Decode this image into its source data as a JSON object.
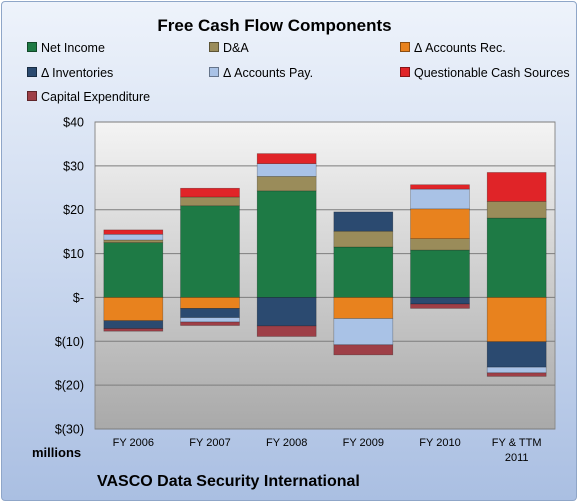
{
  "chart_data": {
    "type": "bar",
    "stacked": true,
    "title": "Free Cash Flow Components",
    "ylabel_units": "millions",
    "footer": "VASCO Data Security International",
    "categories": [
      "FY 2006",
      "FY 2007",
      "FY 2008",
      "FY 2009",
      "FY 2010",
      "FY & TTM 2011"
    ],
    "ylim": [
      -30,
      40
    ],
    "yticks": [
      {
        "value": 40,
        "label": "$40"
      },
      {
        "value": 30,
        "label": "$30"
      },
      {
        "value": 20,
        "label": "$20"
      },
      {
        "value": 10,
        "label": "$10"
      },
      {
        "value": 0,
        "label": "$-"
      },
      {
        "value": -10,
        "label": "$(10)"
      },
      {
        "value": -20,
        "label": "$(20)"
      },
      {
        "value": -30,
        "label": "$(30)"
      }
    ],
    "grid": true,
    "legend_position": "top",
    "series": [
      {
        "name": "Net Income",
        "color": "#1e7a45",
        "values": [
          12.5,
          20.9,
          24.3,
          11.5,
          10.8,
          18.1
        ]
      },
      {
        "name": "D&A",
        "color": "#9a8c5a",
        "values": [
          0.6,
          2.0,
          3.3,
          3.6,
          2.6,
          3.8
        ]
      },
      {
        "name": "Δ Accounts Rec.",
        "color": "#e8821e",
        "values": [
          -5.3,
          -2.5,
          0.0,
          -4.8,
          6.8,
          -10.1
        ]
      },
      {
        "name": "Δ Inventories",
        "color": "#2b4a70",
        "values": [
          -1.8,
          -2.1,
          -6.5,
          4.4,
          -1.5,
          -5.8
        ]
      },
      {
        "name": "Δ Accounts Pay.",
        "color": "#a9c2e6",
        "values": [
          1.3,
          -1.0,
          2.9,
          -6.0,
          4.5,
          -1.3
        ]
      },
      {
        "name": "Questionable Cash Sources",
        "color": "#e02428",
        "values": [
          1.0,
          2.0,
          2.3,
          0.0,
          1.0,
          6.6
        ]
      },
      {
        "name": "Capital Expenditure",
        "color": "#9e3f47",
        "values": [
          -0.6,
          -0.8,
          -2.4,
          -2.3,
          -1.0,
          -0.8
        ]
      }
    ]
  }
}
